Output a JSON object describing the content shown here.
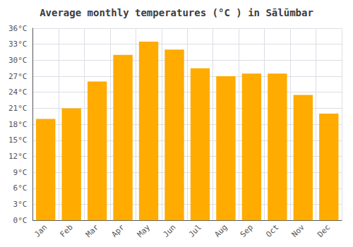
{
  "chart_data": {
    "type": "bar",
    "title": "Average monthly temperatures (°C ) in Sālūmbar",
    "categories": [
      "Jan",
      "Feb",
      "Mar",
      "Apr",
      "May",
      "Jun",
      "Jul",
      "Aug",
      "Sep",
      "Oct",
      "Nov",
      "Dec"
    ],
    "values": [
      19,
      21,
      26,
      31,
      33.5,
      32,
      28.5,
      27,
      27.5,
      27.5,
      23.5,
      20
    ],
    "color": "#FFAB00",
    "ylim": [
      0,
      36
    ],
    "yticks": [
      {
        "value": 0,
        "label": "0°C"
      },
      {
        "value": 3,
        "label": "3°C"
      },
      {
        "value": 6,
        "label": "6°C"
      },
      {
        "value": 9,
        "label": "9°C"
      },
      {
        "value": 12,
        "label": "12°C"
      },
      {
        "value": 15,
        "label": "15°C"
      },
      {
        "value": 18,
        "label": "18°C"
      },
      {
        "value": 21,
        "label": "21°C"
      },
      {
        "value": 24,
        "label": "24°C"
      },
      {
        "value": 27,
        "label": "27°C"
      },
      {
        "value": 30,
        "label": "30°C"
      },
      {
        "value": 33,
        "label": "33°C"
      },
      {
        "value": 36,
        "label": "36°C"
      }
    ],
    "grid": true
  }
}
